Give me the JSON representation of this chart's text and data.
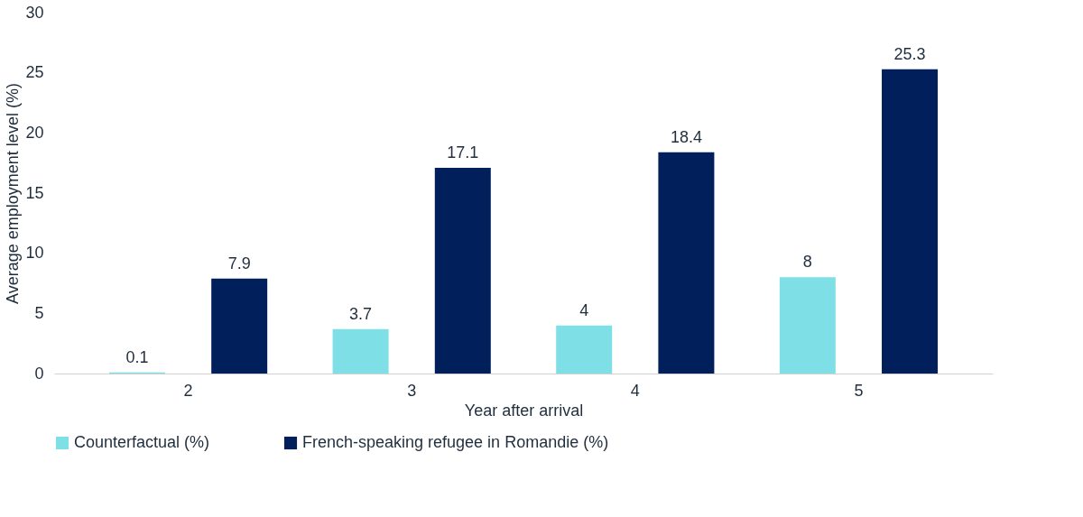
{
  "chart_data": {
    "type": "bar",
    "xlabel": "Year after arrival",
    "ylabel": "Average employment level (%)",
    "categories": [
      "2",
      "3",
      "4",
      "5"
    ],
    "series": [
      {
        "name": "Counterfactual (%)",
        "color": "#7ee0e6",
        "values": [
          0.1,
          3.7,
          4,
          8
        ]
      },
      {
        "name": "French-speaking refugee in Romandie (%)",
        "color": "#001f5b",
        "values": [
          7.9,
          17.1,
          18.4,
          25.3
        ]
      }
    ],
    "ylim": [
      0,
      30
    ],
    "yticks": [
      0,
      5,
      10,
      15,
      20,
      25,
      30
    ],
    "grid": false,
    "legend": "bottom",
    "data_labels": true
  }
}
